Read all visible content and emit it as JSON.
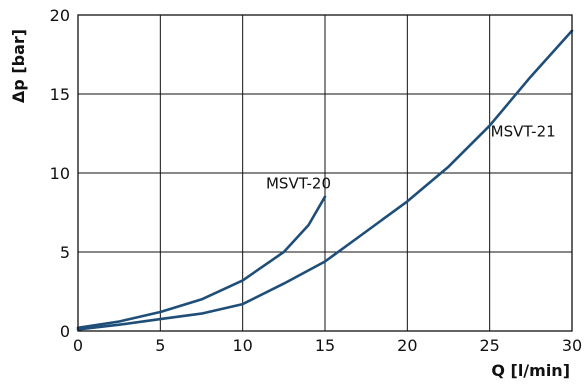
{
  "chart_data": {
    "type": "line",
    "xlabel": "Q [l/min]",
    "ylabel": "Δp [bar]",
    "xlim": [
      0,
      30
    ],
    "ylim": [
      0,
      20
    ],
    "xticks": [
      "0",
      "5",
      "10",
      "15",
      "20",
      "25",
      "30"
    ],
    "yticks": [
      "0",
      "5",
      "10",
      "15",
      "20"
    ],
    "grid": true,
    "line_color": "#1f4e79",
    "series": [
      {
        "name": "MSVT-20",
        "x": [
          0,
          2.5,
          5,
          7.5,
          10,
          12.5,
          14,
          15
        ],
        "y": [
          0.2,
          0.6,
          1.2,
          2.0,
          3.2,
          5.0,
          6.7,
          8.5
        ]
      },
      {
        "name": "MSVT-21",
        "x": [
          0,
          2.5,
          5,
          7.5,
          10,
          12.5,
          15,
          17.5,
          20,
          22.5,
          25,
          27.5,
          30
        ],
        "y": [
          0.1,
          0.4,
          0.75,
          1.1,
          1.7,
          3.0,
          4.4,
          6.3,
          8.2,
          10.4,
          13.0,
          16.1,
          19.0
        ]
      }
    ]
  }
}
